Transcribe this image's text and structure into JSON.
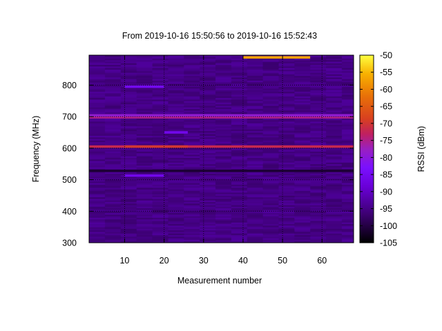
{
  "chart_data": {
    "type": "heatmap",
    "title": "From 2019-10-16 15:50:56 to 2019-10-16 15:52:43",
    "xlabel": "Measurement number",
    "ylabel": "Frequency (MHz)",
    "colorbar_label": "RSSI (dBm)",
    "x_range": [
      1,
      68
    ],
    "y_range": [
      300,
      895
    ],
    "color_range": [
      -105,
      -50
    ],
    "x_ticks": [
      10,
      20,
      30,
      40,
      50,
      60
    ],
    "y_ticks": [
      300,
      400,
      500,
      600,
      700,
      800
    ],
    "color_ticks": [
      -50,
      -55,
      -60,
      -65,
      -70,
      -75,
      -80,
      -85,
      -90,
      -95,
      -100,
      -105
    ],
    "grid": true,
    "background_rssi": -95,
    "bands": [
      {
        "freq_mhz": 605,
        "x_from": 1,
        "x_to": 68,
        "rssi": -72,
        "peak": {
          "x_from": 10,
          "x_to": 26,
          "rssi": -70
        }
      },
      {
        "freq_mhz": 698,
        "x_from": 1,
        "x_to": 68,
        "rssi": -75
      },
      {
        "freq_mhz": 704,
        "x_from": 1,
        "x_to": 68,
        "rssi": -79
      },
      {
        "freq_mhz": 888,
        "x_from": 40,
        "x_to": 57,
        "rssi": -57
      },
      {
        "freq_mhz": 528,
        "x_from": 1,
        "x_to": 68,
        "rssi": -101
      },
      {
        "freq_mhz": 795,
        "x_from": 10,
        "x_to": 20,
        "rssi": -85
      },
      {
        "freq_mhz": 650,
        "x_from": 20,
        "x_to": 26,
        "rssi": -86
      },
      {
        "freq_mhz": 513,
        "x_from": 10,
        "x_to": 20,
        "rssi": -86
      }
    ]
  }
}
